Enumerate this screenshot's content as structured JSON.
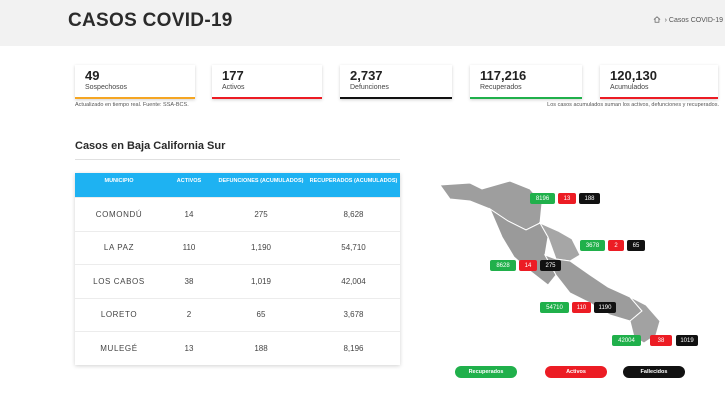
{
  "header": {
    "title": "CASOS COVID-19",
    "breadcrumb": "Casos COVID-19"
  },
  "stats": [
    {
      "value": "49",
      "label": "Sospechosos",
      "color": "#f5a623"
    },
    {
      "value": "177",
      "label": "Activos",
      "color": "#ec1c24"
    },
    {
      "value": "2,737",
      "label": "Defunciones",
      "color": "#111111"
    },
    {
      "value": "117,216",
      "label": "Recuperados",
      "color": "#20b04b"
    },
    {
      "value": "120,130",
      "label": "Acumulados",
      "color": "#ec1c24"
    }
  ],
  "notes": {
    "left": "Actualizado en tiempo real. Fuente: SSA-BCS.",
    "right": "Los casos acumulados suman los activos, defunciones y recuperados."
  },
  "section_title": "Casos en Baja California Sur",
  "table": {
    "headers": [
      "MUNICIPIO",
      "ACTIVOS",
      "DEFUNCIONES (ACUMULADOS)",
      "RECUPERADOS (ACUMULADOS)"
    ],
    "rows": [
      {
        "municipio": "COMONDÚ",
        "activos": "14",
        "defunciones": "275",
        "recuperados": "8,628"
      },
      {
        "municipio": "LA PAZ",
        "activos": "110",
        "defunciones": "1,190",
        "recuperados": "54,710"
      },
      {
        "municipio": "LOS CABOS",
        "activos": "38",
        "defunciones": "1,019",
        "recuperados": "42,004"
      },
      {
        "municipio": "LORETO",
        "activos": "2",
        "defunciones": "65",
        "recuperados": "3,678"
      },
      {
        "municipio": "MULEGÉ",
        "activos": "13",
        "defunciones": "188",
        "recuperados": "8,196"
      }
    ]
  },
  "map": {
    "mulege": {
      "recuperados": "8196",
      "activos": "13",
      "fallecidos": "188"
    },
    "loreto": {
      "recuperados": "3678",
      "activos": "2",
      "fallecidos": "65"
    },
    "comondu": {
      "recuperados": "8628",
      "activos": "14",
      "fallecidos": "275"
    },
    "lapaz": {
      "recuperados": "54710",
      "activos": "110",
      "fallecidos": "1190"
    },
    "loscabos": {
      "recuperados": "42004",
      "activos": "38",
      "fallecidos": "1019"
    }
  },
  "legend": {
    "recuperados": "Recuperados",
    "activos": "Activos",
    "fallecidos": "Fallecidos"
  },
  "colors": {
    "accent_blue": "#1eb2f2",
    "recuperados": "#20b04b",
    "activos": "#ec1c24",
    "fallecidos": "#111111",
    "sospechosos": "#f5a623"
  }
}
